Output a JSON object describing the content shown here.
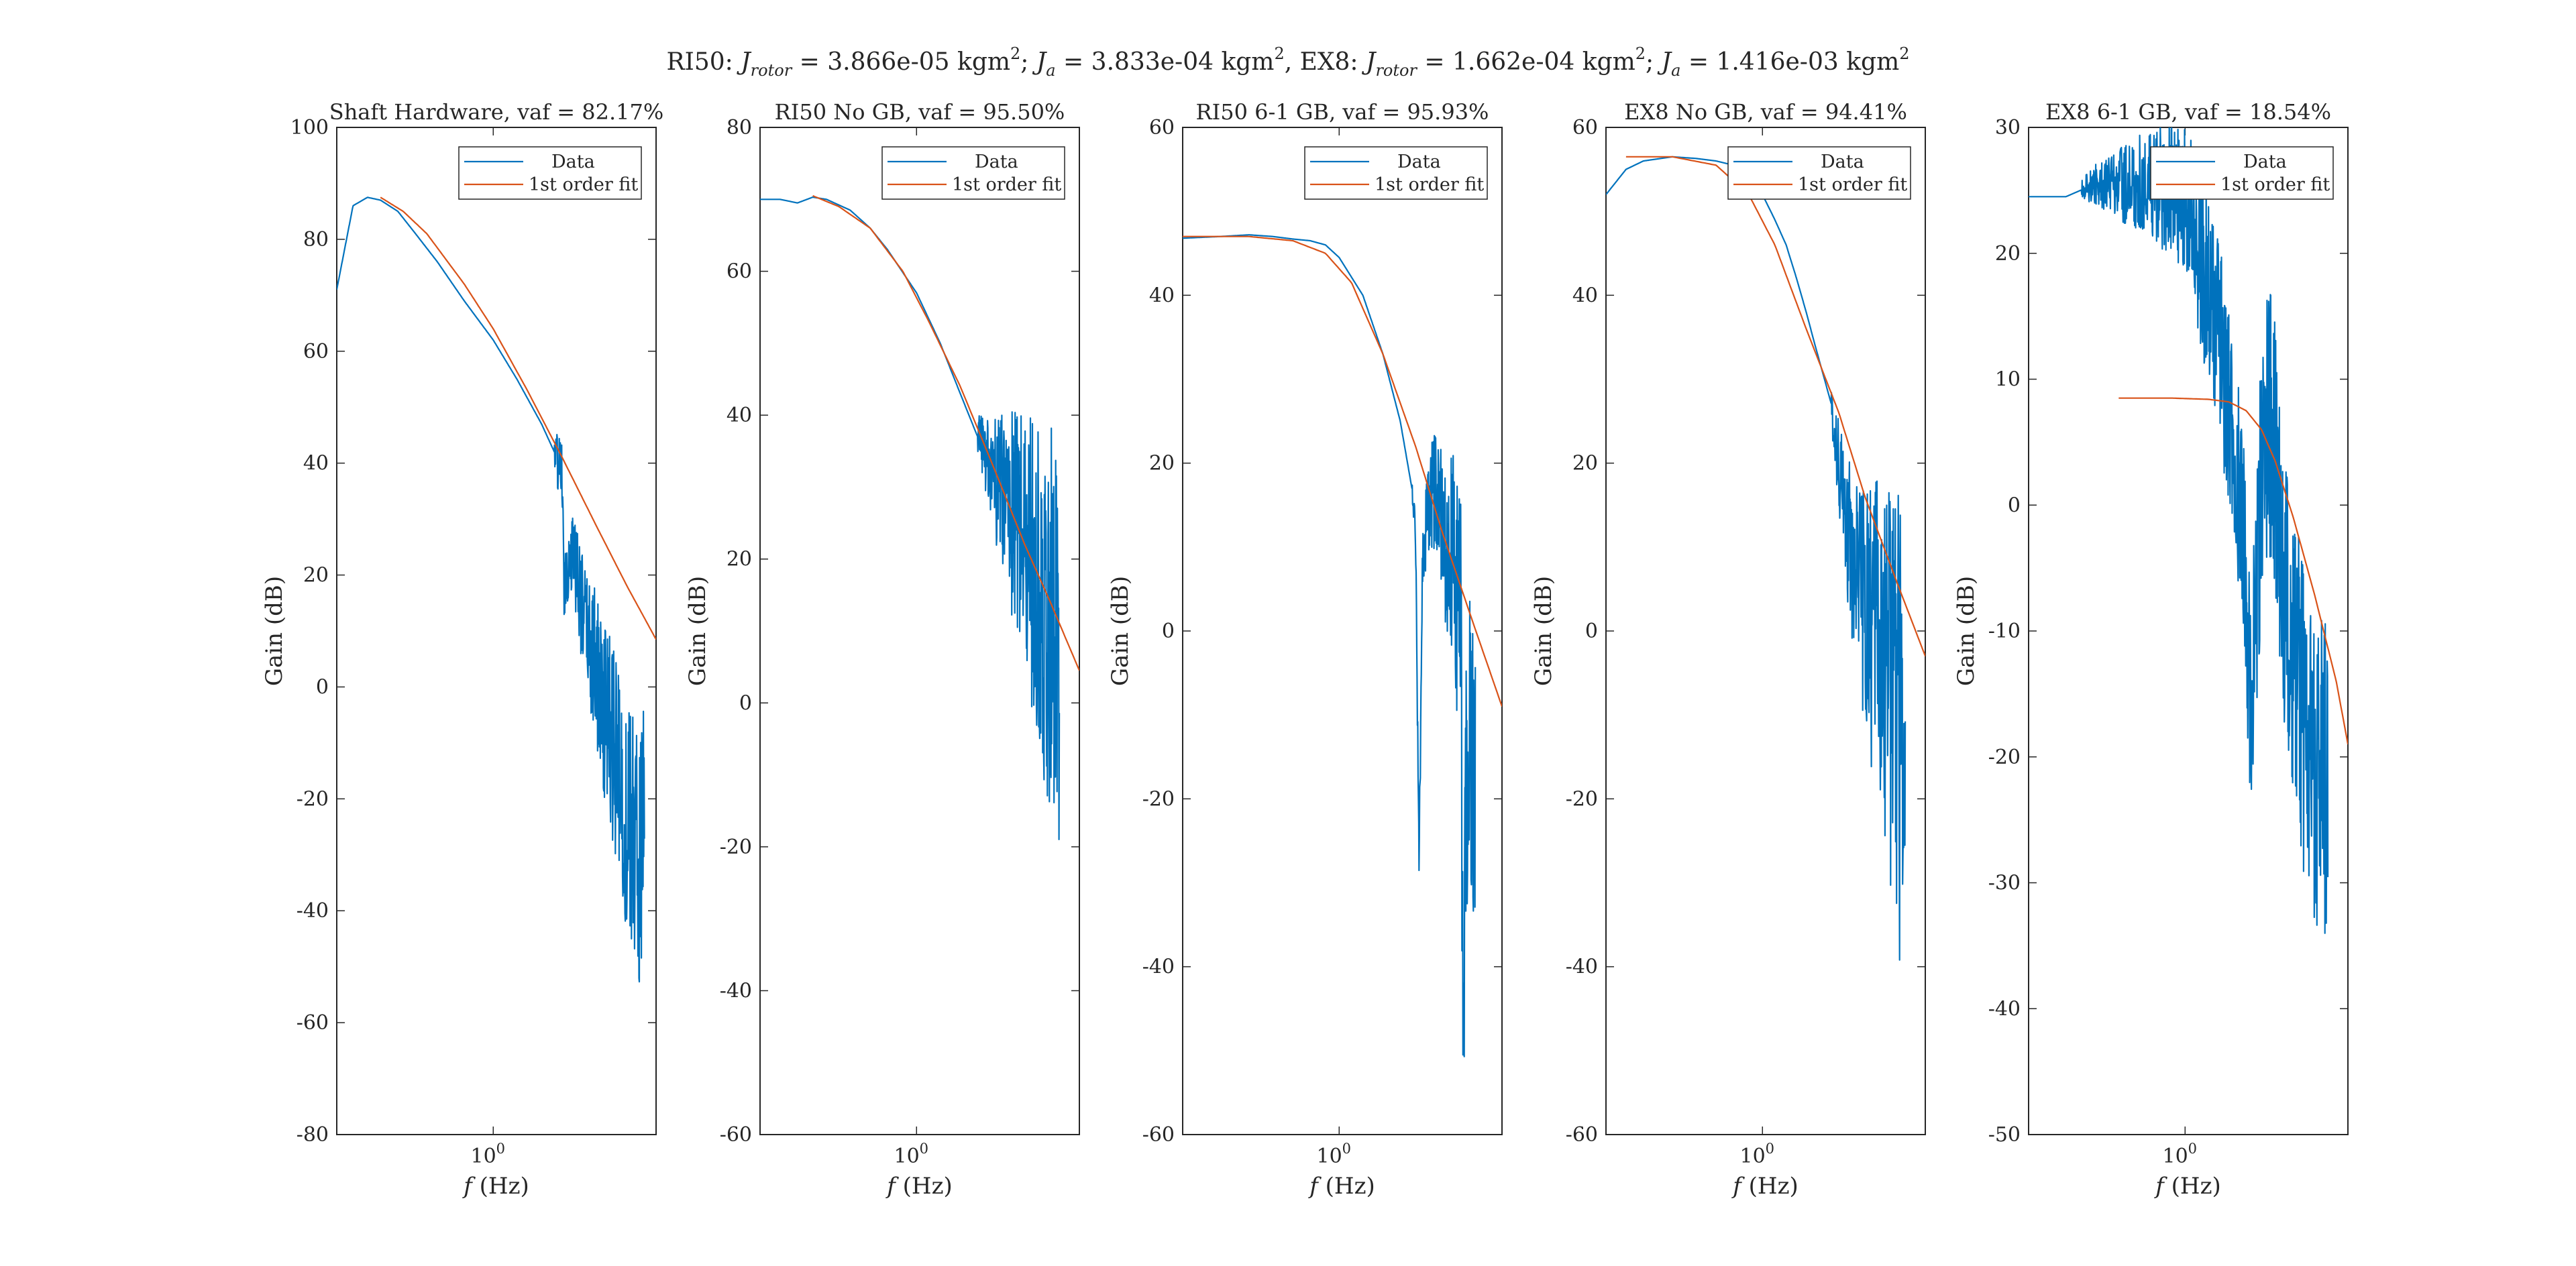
{
  "suptitle": {
    "part1": "RI50: ",
    "j_rotor_1": "J",
    "rotor_sub": "rotor",
    "eq_rotor_1": " = 3.866e-05 kgm",
    "sq": "2",
    "sep1": "; ",
    "j_a_1": "J",
    "a_sub": "a",
    "eq_a_1": " = 3.833e-04 kgm",
    "part2": ", EX8: ",
    "eq_rotor_2": " = 1.662e-04 kgm",
    "eq_a_2": " = 1.416e-03 kgm"
  },
  "colors": {
    "data": "#0072BD",
    "fit": "#D95319",
    "axes": "#262626"
  },
  "legend": {
    "data": "Data",
    "fit": "1st order fit",
    "placement": "top-right"
  },
  "xlabel": {
    "f": "f",
    "unit": " (Hz)"
  },
  "ylabel": "Gain (dB)",
  "xtick": {
    "base": "10",
    "exp": "0"
  },
  "chart_data": [
    {
      "type": "line",
      "title": "Shaft Hardware, vaf = 82.17%",
      "x_scale": "log",
      "xlim": [
        0.3,
        3.5
      ],
      "ylim": [
        -80,
        100
      ],
      "yticks": [
        -80,
        -60,
        -40,
        -20,
        0,
        20,
        40,
        60,
        80,
        100
      ],
      "xticks": [
        1
      ],
      "series": [
        {
          "name": "Data",
          "x": [
            0.3,
            0.34,
            0.38,
            0.42,
            0.48,
            0.55,
            0.65,
            0.8,
            1.0,
            1.2,
            1.45,
            1.6,
            1.7,
            1.72,
            1.8,
            1.9,
            2.0,
            2.2,
            2.5,
            2.8,
            3.2
          ],
          "y": [
            71,
            86,
            87.5,
            87,
            85,
            81,
            76,
            69,
            62,
            55,
            47,
            42,
            38,
            18,
            24,
            22,
            12,
            3,
            -10,
            -25,
            -30
          ],
          "noise": {
            "start": 1.6,
            "end": 3.2,
            "amp_start": 4,
            "amp_end": 26,
            "min": -60
          }
        },
        {
          "name": "1st order fit",
          "x": [
            0.42,
            0.5,
            0.6,
            0.8,
            1.0,
            1.3,
            1.7,
            2.2,
            2.8,
            3.5
          ],
          "y": [
            87.5,
            85,
            81,
            72,
            64,
            53,
            41,
            29,
            18,
            8.5
          ]
        }
      ]
    },
    {
      "type": "line",
      "title": "RI50 No GB, vaf = 95.50%",
      "x_scale": "log",
      "xlim": [
        0.3,
        3.5
      ],
      "ylim": [
        -60,
        80
      ],
      "yticks": [
        -60,
        -40,
        -20,
        0,
        20,
        40,
        60,
        80
      ],
      "xticks": [
        1
      ],
      "series": [
        {
          "name": "Data",
          "x": [
            0.3,
            0.35,
            0.4,
            0.45,
            0.5,
            0.6,
            0.7,
            0.8,
            1.0,
            1.2,
            1.4,
            1.6,
            1.8,
            2.0,
            2.3,
            2.6,
            3.0
          ],
          "y": [
            70,
            70,
            69.5,
            70.3,
            70,
            68.5,
            66,
            63,
            57,
            50,
            43,
            37,
            32,
            28,
            22,
            15,
            8
          ],
          "noise": {
            "start": 1.6,
            "end": 3.0,
            "amp_start": 3,
            "amp_end": 30,
            "min": -52
          }
        },
        {
          "name": "1st order fit",
          "x": [
            0.45,
            0.55,
            0.7,
            0.9,
            1.1,
            1.4,
            1.8,
            2.3,
            2.8,
            3.5
          ],
          "y": [
            70.5,
            69,
            66,
            60,
            53,
            44,
            33,
            22,
            14,
            4.5
          ]
        }
      ]
    },
    {
      "type": "line",
      "title": "RI50 6-1 GB, vaf = 95.93%",
      "x_scale": "log",
      "xlim": [
        0.3,
        3.5
      ],
      "ylim": [
        -60,
        60
      ],
      "yticks": [
        -60,
        -40,
        -20,
        0,
        20,
        40,
        60
      ],
      "xticks": [
        1
      ],
      "series": [
        {
          "name": "Data",
          "x": [
            0.3,
            0.4,
            0.5,
            0.6,
            0.7,
            0.8,
            0.9,
            1.0,
            1.2,
            1.4,
            1.6,
            1.75,
            1.8,
            1.85,
            1.9,
            2.0,
            2.1,
            2.2,
            2.4,
            2.55,
            2.6,
            2.65,
            2.7,
            2.85
          ],
          "y": [
            46.8,
            47,
            47.2,
            47,
            46.7,
            46.5,
            46,
            44.5,
            40,
            33,
            25,
            17,
            12,
            -28,
            10,
            15,
            16.5,
            14,
            8,
            0,
            -55,
            -20,
            -14,
            -14
          ],
          "noise": {
            "start": 1.75,
            "end": 2.85,
            "amp_start": 1,
            "amp_end": 20,
            "min": -59
          }
        },
        {
          "name": "1st order fit",
          "x": [
            0.3,
            0.5,
            0.7,
            0.9,
            1.1,
            1.4,
            1.8,
            2.2,
            2.8,
            3.5
          ],
          "y": [
            47,
            47,
            46.5,
            45,
            41.5,
            33,
            22,
            12,
            1,
            -9
          ]
        }
      ]
    },
    {
      "type": "line",
      "title": "EX8 No GB, vaf = 94.41%",
      "x_scale": "log",
      "xlim": [
        0.3,
        3.5
      ],
      "ylim": [
        -60,
        60
      ],
      "yticks": [
        -60,
        -40,
        -20,
        0,
        20,
        40,
        60
      ],
      "xticks": [
        1
      ],
      "series": [
        {
          "name": "Data",
          "x": [
            0.3,
            0.35,
            0.4,
            0.5,
            0.6,
            0.7,
            0.8,
            0.9,
            1.0,
            1.1,
            1.2,
            1.3,
            1.4,
            1.5,
            1.7,
            1.75,
            1.8,
            1.9,
            2.0,
            2.2,
            2.4,
            2.6,
            2.8,
            3.0
          ],
          "y": [
            52,
            55,
            56,
            56.5,
            56.3,
            56,
            55.5,
            54,
            52,
            49,
            46,
            42,
            38,
            34,
            27,
            22,
            20,
            14,
            8,
            2,
            -1,
            -6,
            -10,
            -14
          ],
          "noise": {
            "start": 1.7,
            "end": 3.0,
            "amp_start": 3,
            "amp_end": 30,
            "min": -55
          }
        },
        {
          "name": "1st order fit",
          "x": [
            0.35,
            0.5,
            0.7,
            0.9,
            1.1,
            1.4,
            1.8,
            2.2,
            2.8,
            3.5
          ],
          "y": [
            56.5,
            56.5,
            55.5,
            52,
            46,
            36,
            26,
            16,
            6,
            -3
          ]
        }
      ]
    },
    {
      "type": "line",
      "title": "EX8 6-1 GB, vaf = 18.54%",
      "x_scale": "log",
      "xlim": [
        0.3,
        3.5
      ],
      "ylim": [
        -50,
        30
      ],
      "yticks": [
        -50,
        -40,
        -30,
        -20,
        -10,
        0,
        10,
        20,
        30
      ],
      "xticks": [
        1
      ],
      "series": [
        {
          "name": "Data",
          "x": [
            0.3,
            0.4,
            0.5,
            0.6,
            0.7,
            0.8,
            0.9,
            1.0,
            1.1,
            1.2,
            1.3,
            1.4,
            1.5,
            1.6,
            1.65,
            1.7,
            1.8,
            1.9,
            2.0,
            2.1,
            2.2,
            2.4,
            2.6,
            2.8,
            3.0
          ],
          "y": [
            24.5,
            24.5,
            25.5,
            25.5,
            25.5,
            25.5,
            25.3,
            24,
            21,
            17,
            13,
            8,
            3,
            -5,
            -18,
            -10,
            2,
            7,
            4,
            -5,
            -10,
            -15,
            -20,
            -22,
            -22
          ],
          "noise": {
            "start": 0.45,
            "end": 3.0,
            "amp_start": 0.8,
            "amp_end": 14,
            "min": -44
          }
        },
        {
          "name": "1st order fit",
          "x": [
            0.6,
            0.9,
            1.2,
            1.4,
            1.6,
            1.8,
            2.0,
            2.3,
            2.7,
            3.2,
            3.5
          ],
          "y": [
            8.5,
            8.5,
            8.4,
            8.2,
            7.5,
            6,
            3.5,
            -1,
            -7,
            -14,
            -19
          ]
        }
      ]
    }
  ]
}
